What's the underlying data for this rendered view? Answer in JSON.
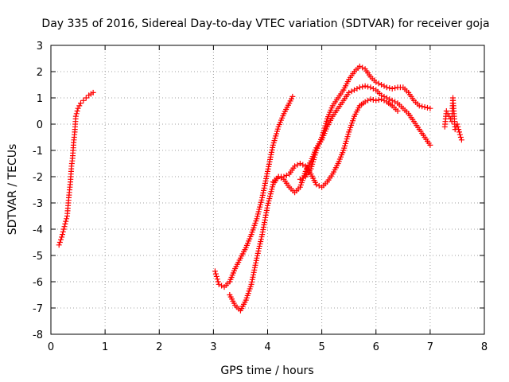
{
  "chart_data": {
    "type": "scatter",
    "title": "Day 335 of 2016, Sidereal Day-to-day VTEC variation (SDTVAR) for receiver goja",
    "xlabel": "GPS time / hours",
    "ylabel": "SDTVAR / TECUs",
    "xlim": [
      0,
      8
    ],
    "ylim": [
      -8,
      3
    ],
    "xticks": [
      0,
      1,
      2,
      3,
      4,
      5,
      6,
      7,
      8
    ],
    "yticks": [
      -8,
      -7,
      -6,
      -5,
      -4,
      -3,
      -2,
      -1,
      0,
      1,
      2,
      3
    ],
    "grid": true,
    "marker": "+",
    "color": "#ff0000",
    "series": [
      {
        "values": [
          [
            0.15,
            -4.6
          ],
          [
            0.2,
            -4.3
          ],
          [
            0.25,
            -3.9
          ],
          [
            0.3,
            -3.5
          ],
          [
            0.33,
            -2.8
          ],
          [
            0.36,
            -2.2
          ],
          [
            0.38,
            -1.6
          ],
          [
            0.4,
            -1.3
          ],
          [
            0.42,
            -0.7
          ],
          [
            0.44,
            -0.3
          ],
          [
            0.46,
            0.3
          ],
          [
            0.5,
            0.6
          ],
          [
            0.55,
            0.8
          ],
          [
            0.6,
            0.9
          ],
          [
            0.65,
            1.0
          ],
          [
            0.7,
            1.1
          ],
          [
            0.78,
            1.2
          ]
        ]
      },
      {
        "values": [
          [
            3.03,
            -5.6
          ],
          [
            3.1,
            -6.1
          ],
          [
            3.2,
            -6.2
          ],
          [
            3.3,
            -6.0
          ],
          [
            3.4,
            -5.5
          ],
          [
            3.5,
            -5.1
          ],
          [
            3.6,
            -4.7
          ],
          [
            3.7,
            -4.2
          ],
          [
            3.8,
            -3.6
          ],
          [
            3.9,
            -2.8
          ],
          [
            4.0,
            -1.8
          ],
          [
            4.1,
            -0.8
          ],
          [
            4.2,
            -0.1
          ],
          [
            4.3,
            0.4
          ],
          [
            4.4,
            0.8
          ],
          [
            4.46,
            1.05
          ]
        ]
      },
      {
        "values": [
          [
            3.3,
            -6.5
          ],
          [
            3.4,
            -6.9
          ],
          [
            3.5,
            -7.1
          ],
          [
            3.6,
            -6.7
          ],
          [
            3.7,
            -6.1
          ],
          [
            3.8,
            -5.1
          ],
          [
            3.9,
            -4.2
          ],
          [
            4.0,
            -3.1
          ],
          [
            4.1,
            -2.3
          ],
          [
            4.2,
            -2.0
          ],
          [
            4.3,
            -2.1
          ],
          [
            4.4,
            -2.4
          ],
          [
            4.5,
            -2.6
          ],
          [
            4.6,
            -2.4
          ],
          [
            4.7,
            -1.8
          ],
          [
            4.8,
            -1.4
          ],
          [
            4.9,
            -0.9
          ],
          [
            5.0,
            -0.6
          ],
          [
            5.1,
            -0.1
          ],
          [
            5.2,
            0.3
          ],
          [
            5.3,
            0.6
          ],
          [
            5.4,
            0.9
          ],
          [
            5.5,
            1.2
          ],
          [
            5.6,
            1.3
          ],
          [
            5.7,
            1.4
          ],
          [
            5.8,
            1.45
          ],
          [
            5.9,
            1.4
          ],
          [
            6.0,
            1.3
          ],
          [
            6.1,
            1.1
          ],
          [
            6.2,
            1.0
          ],
          [
            6.3,
            0.9
          ],
          [
            6.4,
            0.8
          ],
          [
            6.5,
            0.6
          ],
          [
            6.6,
            0.4
          ],
          [
            6.7,
            0.1
          ],
          [
            6.8,
            -0.2
          ],
          [
            6.9,
            -0.5
          ],
          [
            7.0,
            -0.8
          ]
        ]
      },
      {
        "values": [
          [
            4.1,
            -2.2
          ],
          [
            4.2,
            -2.0
          ],
          [
            4.3,
            -2.0
          ],
          [
            4.4,
            -1.9
          ],
          [
            4.5,
            -1.6
          ],
          [
            4.6,
            -1.5
          ],
          [
            4.7,
            -1.6
          ],
          [
            4.8,
            -1.9
          ],
          [
            4.9,
            -2.3
          ],
          [
            5.0,
            -2.4
          ],
          [
            5.1,
            -2.2
          ],
          [
            5.2,
            -1.9
          ],
          [
            5.3,
            -1.5
          ],
          [
            5.4,
            -1.0
          ],
          [
            5.5,
            -0.3
          ],
          [
            5.6,
            0.3
          ],
          [
            5.7,
            0.7
          ],
          [
            5.8,
            0.85
          ],
          [
            5.9,
            0.95
          ],
          [
            6.0,
            0.9
          ],
          [
            6.1,
            0.95
          ],
          [
            6.2,
            0.85
          ],
          [
            6.3,
            0.7
          ],
          [
            6.4,
            0.5
          ]
        ]
      },
      {
        "values": [
          [
            4.6,
            -2.1
          ],
          [
            4.7,
            -2.0
          ],
          [
            4.8,
            -1.7
          ],
          [
            4.9,
            -1.0
          ],
          [
            5.0,
            -0.5
          ],
          [
            5.1,
            0.2
          ],
          [
            5.2,
            0.7
          ],
          [
            5.3,
            1.0
          ],
          [
            5.4,
            1.3
          ],
          [
            5.5,
            1.7
          ],
          [
            5.6,
            2.0
          ],
          [
            5.7,
            2.2
          ],
          [
            5.8,
            2.1
          ],
          [
            5.9,
            1.8
          ],
          [
            6.0,
            1.6
          ],
          [
            6.1,
            1.5
          ],
          [
            6.2,
            1.4
          ],
          [
            6.3,
            1.35
          ],
          [
            6.4,
            1.4
          ],
          [
            6.5,
            1.4
          ],
          [
            6.6,
            1.2
          ],
          [
            6.7,
            0.9
          ],
          [
            6.8,
            0.7
          ],
          [
            6.9,
            0.65
          ],
          [
            7.0,
            0.6
          ]
        ]
      },
      {
        "values": [
          [
            7.27,
            -0.1
          ],
          [
            7.3,
            0.5
          ],
          [
            7.35,
            0.3
          ],
          [
            7.4,
            0.1
          ],
          [
            7.42,
            1.0
          ],
          [
            7.46,
            -0.2
          ],
          [
            7.5,
            0.0
          ],
          [
            7.55,
            -0.4
          ],
          [
            7.58,
            -0.6
          ]
        ]
      }
    ]
  }
}
